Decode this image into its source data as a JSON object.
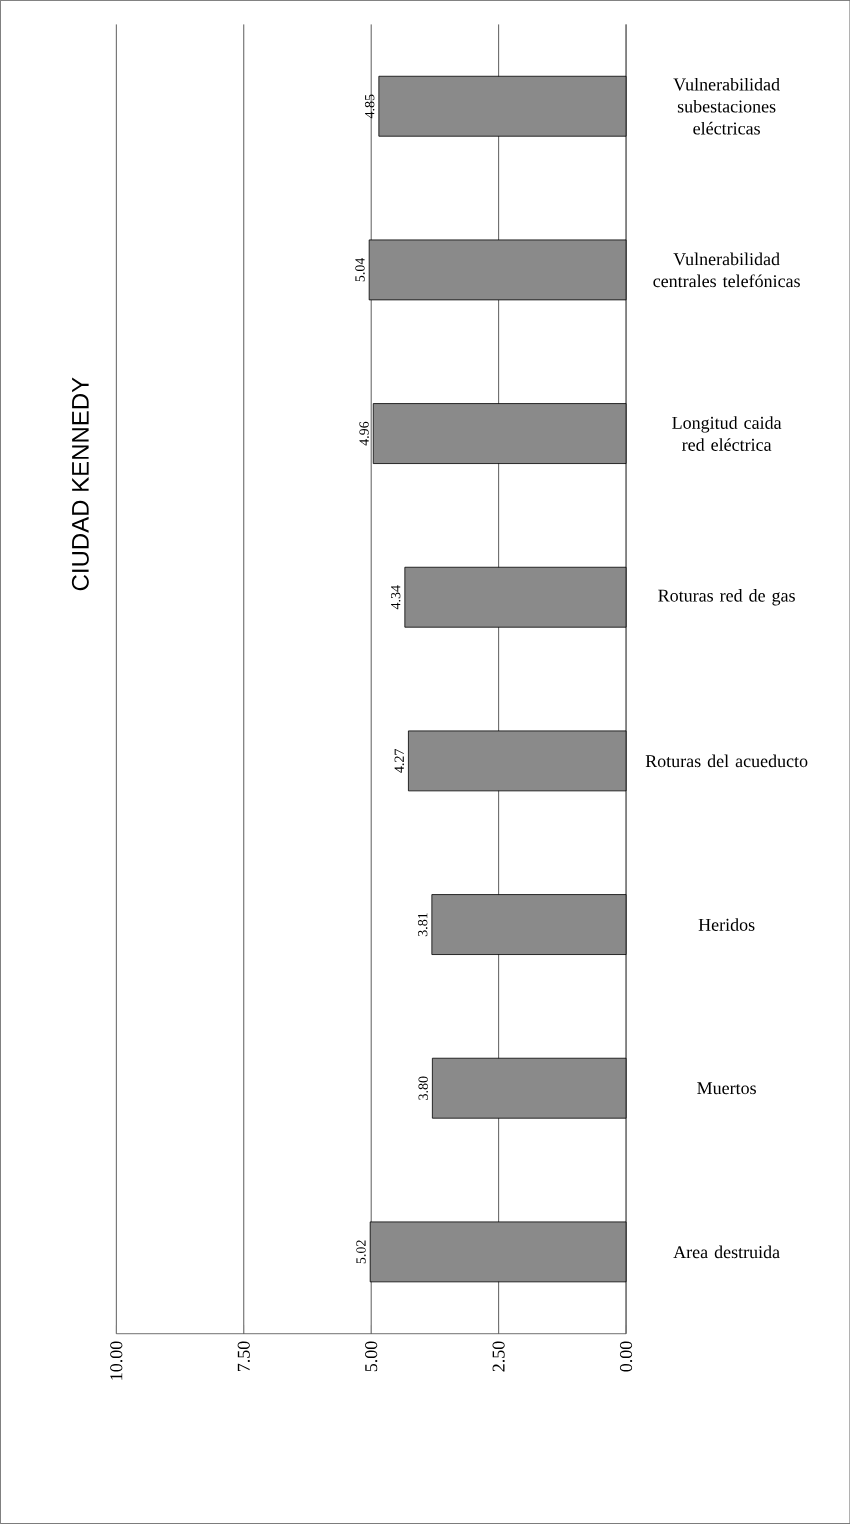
{
  "chart_data": {
    "type": "bar",
    "orientation": "horizontal",
    "title": "CIUDAD KENNEDY",
    "categories": [
      "Vulnerabilidad subestaciones eléctricas",
      "Vulnerabilidad centrales telefónicas",
      "Longitud caida red eléctrica",
      "Roturas red de gas",
      "Roturas del acueducto",
      "Heridos",
      "Muertos",
      "Area destruida"
    ],
    "values": [
      4.85,
      5.04,
      4.96,
      4.34,
      4.27,
      3.81,
      3.8,
      5.02
    ],
    "color": "#8a8a8a",
    "xlim": [
      10,
      0
    ],
    "xticks": [
      {
        "value": 10,
        "label": "10.00"
      },
      {
        "value": 7.5,
        "label": "7.50"
      },
      {
        "value": 5,
        "label": "5.00"
      },
      {
        "value": 2.5,
        "label": "2.50"
      },
      {
        "value": 0,
        "label": "0.00"
      }
    ],
    "grid": "x",
    "value_labels": [
      "4.85",
      "5.04",
      "4.96",
      "4.34",
      "4.27",
      "3.81",
      "3.80",
      "5.02"
    ]
  }
}
